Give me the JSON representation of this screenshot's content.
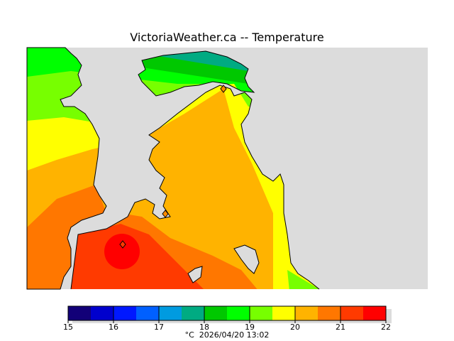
{
  "title": "VictoriaWeather.ca -- Temperature",
  "colorbar": {
    "unit": "°C",
    "timestamp": "2026/04/20 13:02",
    "ticks": [
      "15",
      "16",
      "17",
      "18",
      "19",
      "20",
      "21",
      "22"
    ],
    "colors": [
      "#120078",
      "#0000cd",
      "#0018ff",
      "#0060ff",
      "#009be0",
      "#00ab82",
      "#00c800",
      "#00ff00",
      "#77ff00",
      "#ffff00",
      "#ffb300",
      "#ff7700",
      "#ff3a00",
      "#ff0000"
    ]
  },
  "colors": {
    "water": "#dcdcdc",
    "station": "#ff8c00"
  }
}
